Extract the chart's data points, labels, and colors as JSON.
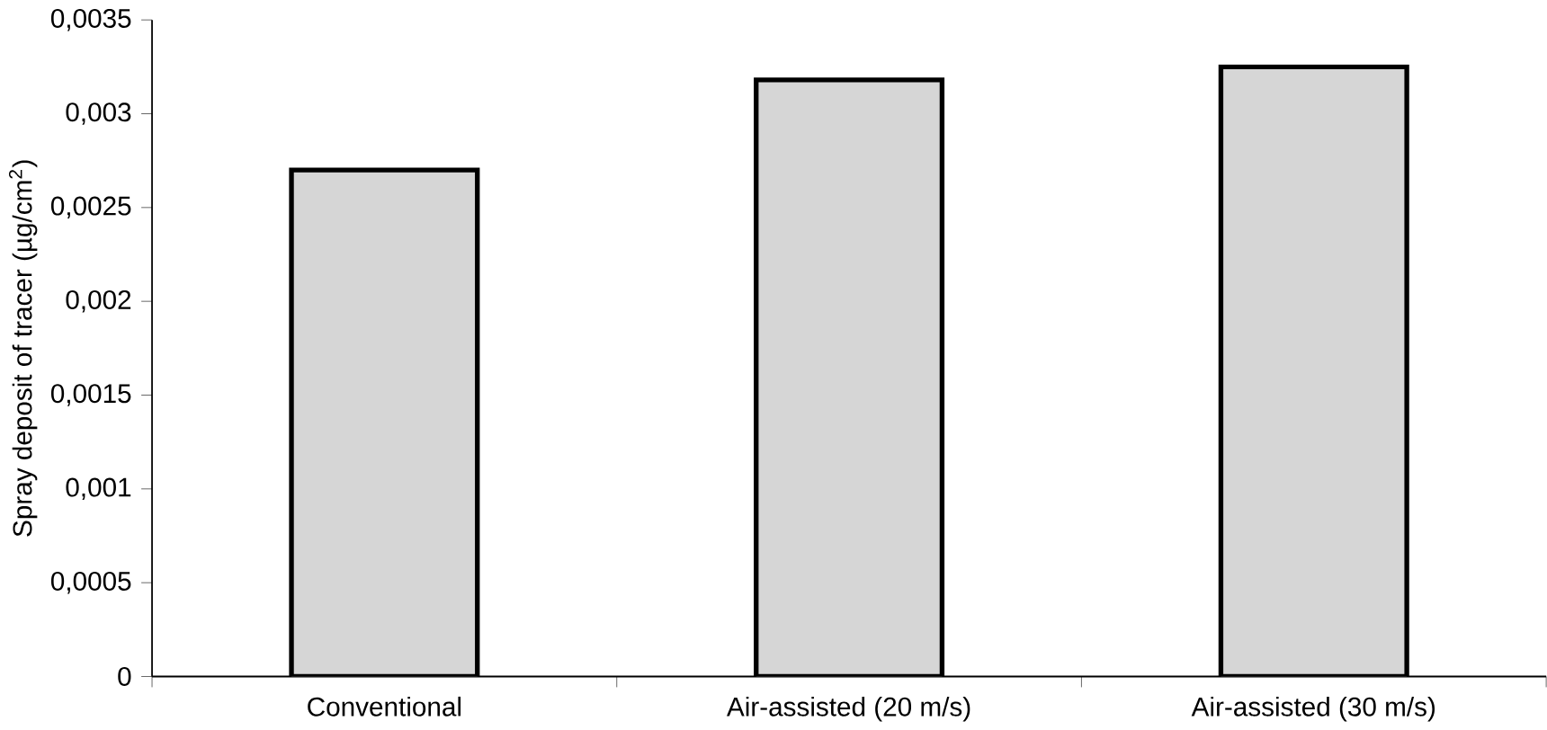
{
  "chart_data": {
    "type": "bar",
    "ylabel": "Spray deposit of  tracer  (µg/cm$^{2}$)",
    "categories": [
      "Conventional",
      "Air-assisted (20 m/s)",
      "Air-assisted (30 m/s)"
    ],
    "values": [
      0.0027,
      0.00318,
      0.00325
    ],
    "color": "#d6d6d6",
    "ylim": [
      0,
      0.0035
    ],
    "yticks": [
      0,
      {
        "value": 0.0005,
        "label": "0,0005"
      },
      {
        "value": 0.001,
        "label": "0,001"
      },
      {
        "value": 0.0015,
        "label": "0,0015"
      },
      {
        "value": 0.002,
        "label": "0,002"
      },
      {
        "value": 0.0025,
        "label": "0,0025"
      },
      {
        "value": 0.003,
        "label": "0,003"
      },
      {
        "value": 0.0035,
        "label": "0,0035"
      }
    ],
    "grid": false
  }
}
